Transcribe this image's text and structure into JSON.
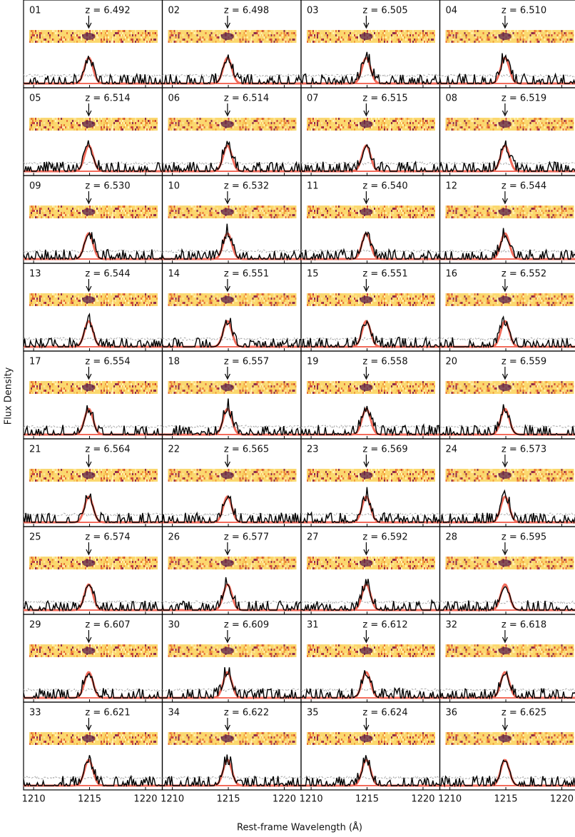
{
  "chart_data": {
    "type": "spectra-grid",
    "x_label": "Rest-frame Wavelength (Å)",
    "y_label": "Flux Density",
    "xlim": [
      1209.1,
      1221.5
    ],
    "xticks": [
      1210,
      1215,
      1220
    ],
    "panels": [
      {
        "label": "01",
        "z": "z = 6.492"
      },
      {
        "label": "02",
        "z": "z = 6.498"
      },
      {
        "label": "03",
        "z": "z = 6.505"
      },
      {
        "label": "04",
        "z": "z = 6.510"
      },
      {
        "label": "05",
        "z": "z = 6.514"
      },
      {
        "label": "06",
        "z": "z = 6.514"
      },
      {
        "label": "07",
        "z": "z = 6.515"
      },
      {
        "label": "08",
        "z": "z = 6.519"
      },
      {
        "label": "09",
        "z": "z = 6.530"
      },
      {
        "label": "10",
        "z": "z = 6.532"
      },
      {
        "label": "11",
        "z": "z = 6.540"
      },
      {
        "label": "12",
        "z": "z = 6.544"
      },
      {
        "label": "13",
        "z": "z = 6.544"
      },
      {
        "label": "14",
        "z": "z = 6.551"
      },
      {
        "label": "15",
        "z": "z = 6.551"
      },
      {
        "label": "16",
        "z": "z = 6.552"
      },
      {
        "label": "17",
        "z": "z = 6.554"
      },
      {
        "label": "18",
        "z": "z = 6.557"
      },
      {
        "label": "19",
        "z": "z = 6.558"
      },
      {
        "label": "20",
        "z": "z = 6.559"
      },
      {
        "label": "21",
        "z": "z = 6.564"
      },
      {
        "label": "22",
        "z": "z = 6.565"
      },
      {
        "label": "23",
        "z": "z = 6.569"
      },
      {
        "label": "24",
        "z": "z = 6.573"
      },
      {
        "label": "25",
        "z": "z = 6.574"
      },
      {
        "label": "26",
        "z": "z = 6.577"
      },
      {
        "label": "27",
        "z": "z = 6.592"
      },
      {
        "label": "28",
        "z": "z = 6.595"
      },
      {
        "label": "29",
        "z": "z = 6.607"
      },
      {
        "label": "30",
        "z": "z = 6.609"
      },
      {
        "label": "31",
        "z": "z = 6.612"
      },
      {
        "label": "32",
        "z": "z = 6.618"
      },
      {
        "label": "33",
        "z": "z = 6.621"
      },
      {
        "label": "34",
        "z": "z = 6.622"
      },
      {
        "label": "35",
        "z": "z = 6.624"
      },
      {
        "label": "36",
        "z": "z = 6.625"
      }
    ]
  }
}
